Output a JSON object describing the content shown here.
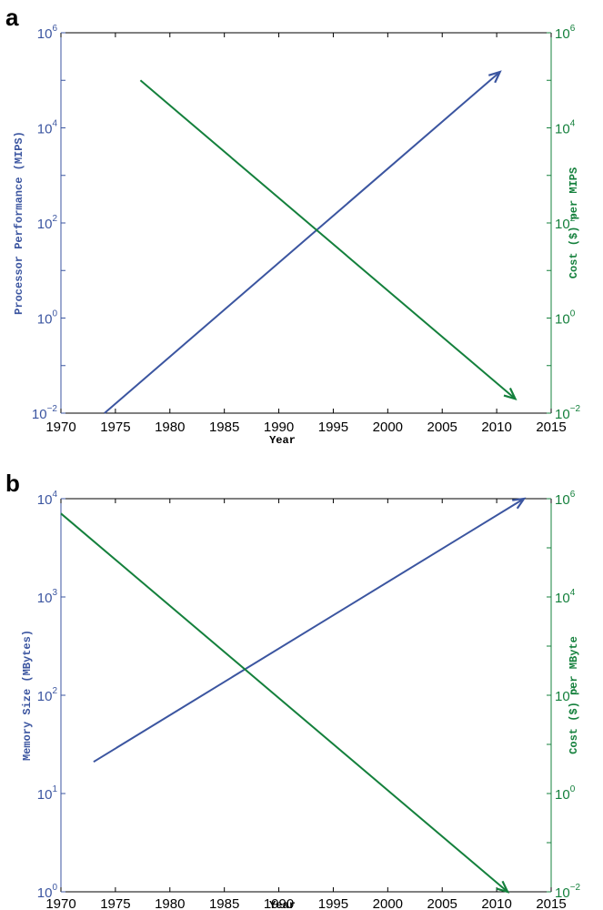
{
  "colors": {
    "blue": "#3b55a0",
    "green": "#14803c",
    "axis": "#000000"
  },
  "chart_data": [
    {
      "panel_label": "a",
      "type": "line",
      "xlabel": "Year",
      "xlim": [
        1970,
        2015
      ],
      "xticks": [
        "1970",
        "1975",
        "1980",
        "1985",
        "1990",
        "1995",
        "2000",
        "2005",
        "2010",
        "2015"
      ],
      "grid": false,
      "ylabel_left": "Processor Performance (MIPS)",
      "ylim_left": [
        0.01,
        1000000
      ],
      "yscale_left": "log",
      "yticks_left": [
        {
          "base": "10",
          "exp": "6",
          "value": 1000000
        },
        {
          "base": "10",
          "exp": "4",
          "value": 10000
        },
        {
          "base": "10",
          "exp": "2",
          "value": 100
        },
        {
          "base": "10",
          "exp": "0",
          "value": 1
        },
        {
          "base": "10",
          "exp": "−2",
          "value": 0.01
        }
      ],
      "ylabel_right": "Cost ($) per MIPS",
      "ylim_right": [
        0.01,
        1000000
      ],
      "yscale_right": "log",
      "yticks_right": [
        {
          "base": "10",
          "exp": "6",
          "value": 1000000
        },
        {
          "base": "10",
          "exp": "4",
          "value": 10000
        },
        {
          "base": "10",
          "exp": "2",
          "value": 100
        },
        {
          "base": "10",
          "exp": "0",
          "value": 1
        },
        {
          "base": "10",
          "exp": "−2",
          "value": 0.01
        }
      ],
      "series": [
        {
          "axis": "left",
          "color": "blue",
          "arrow": true,
          "x": [
            1974,
            2010.3
          ],
          "y": [
            0.01,
            150000
          ]
        },
        {
          "axis": "right",
          "color": "green",
          "arrow": true,
          "x": [
            1977.3,
            2011.7
          ],
          "y": [
            100000,
            0.02
          ]
        }
      ]
    },
    {
      "panel_label": "b",
      "type": "line",
      "xlabel": "Year",
      "xlim": [
        1970,
        2015
      ],
      "xticks": [
        "1970",
        "1975",
        "1980",
        "1985",
        "1990",
        "1995",
        "2000",
        "2005",
        "2010",
        "2015"
      ],
      "grid": false,
      "ylabel_left": "Memory Size (MBytes)",
      "ylim_left": [
        1,
        10000
      ],
      "yscale_left": "log",
      "yticks_left": [
        {
          "base": "10",
          "exp": "4",
          "value": 10000
        },
        {
          "base": "10",
          "exp": "3",
          "value": 1000
        },
        {
          "base": "10",
          "exp": "2",
          "value": 100
        },
        {
          "base": "10",
          "exp": "1",
          "value": 10
        },
        {
          "base": "10",
          "exp": "0",
          "value": 1
        }
      ],
      "ylabel_right": "Cost ($) per MByte",
      "ylim_right": [
        0.01,
        1000000
      ],
      "yscale_right": "log",
      "yticks_right": [
        {
          "base": "10",
          "exp": "6",
          "value": 1000000
        },
        {
          "base": "10",
          "exp": "4",
          "value": 10000
        },
        {
          "base": "10",
          "exp": "2",
          "value": 100
        },
        {
          "base": "10",
          "exp": "0",
          "value": 1
        },
        {
          "base": "10",
          "exp": "−2",
          "value": 0.01
        }
      ],
      "series": [
        {
          "axis": "left",
          "color": "blue",
          "arrow": true,
          "x": [
            1973,
            2012.5
          ],
          "y": [
            21,
            10000
          ]
        },
        {
          "axis": "right",
          "color": "green",
          "arrow": true,
          "x": [
            1970,
            2011
          ],
          "y": [
            500000,
            0.01
          ]
        }
      ]
    }
  ]
}
